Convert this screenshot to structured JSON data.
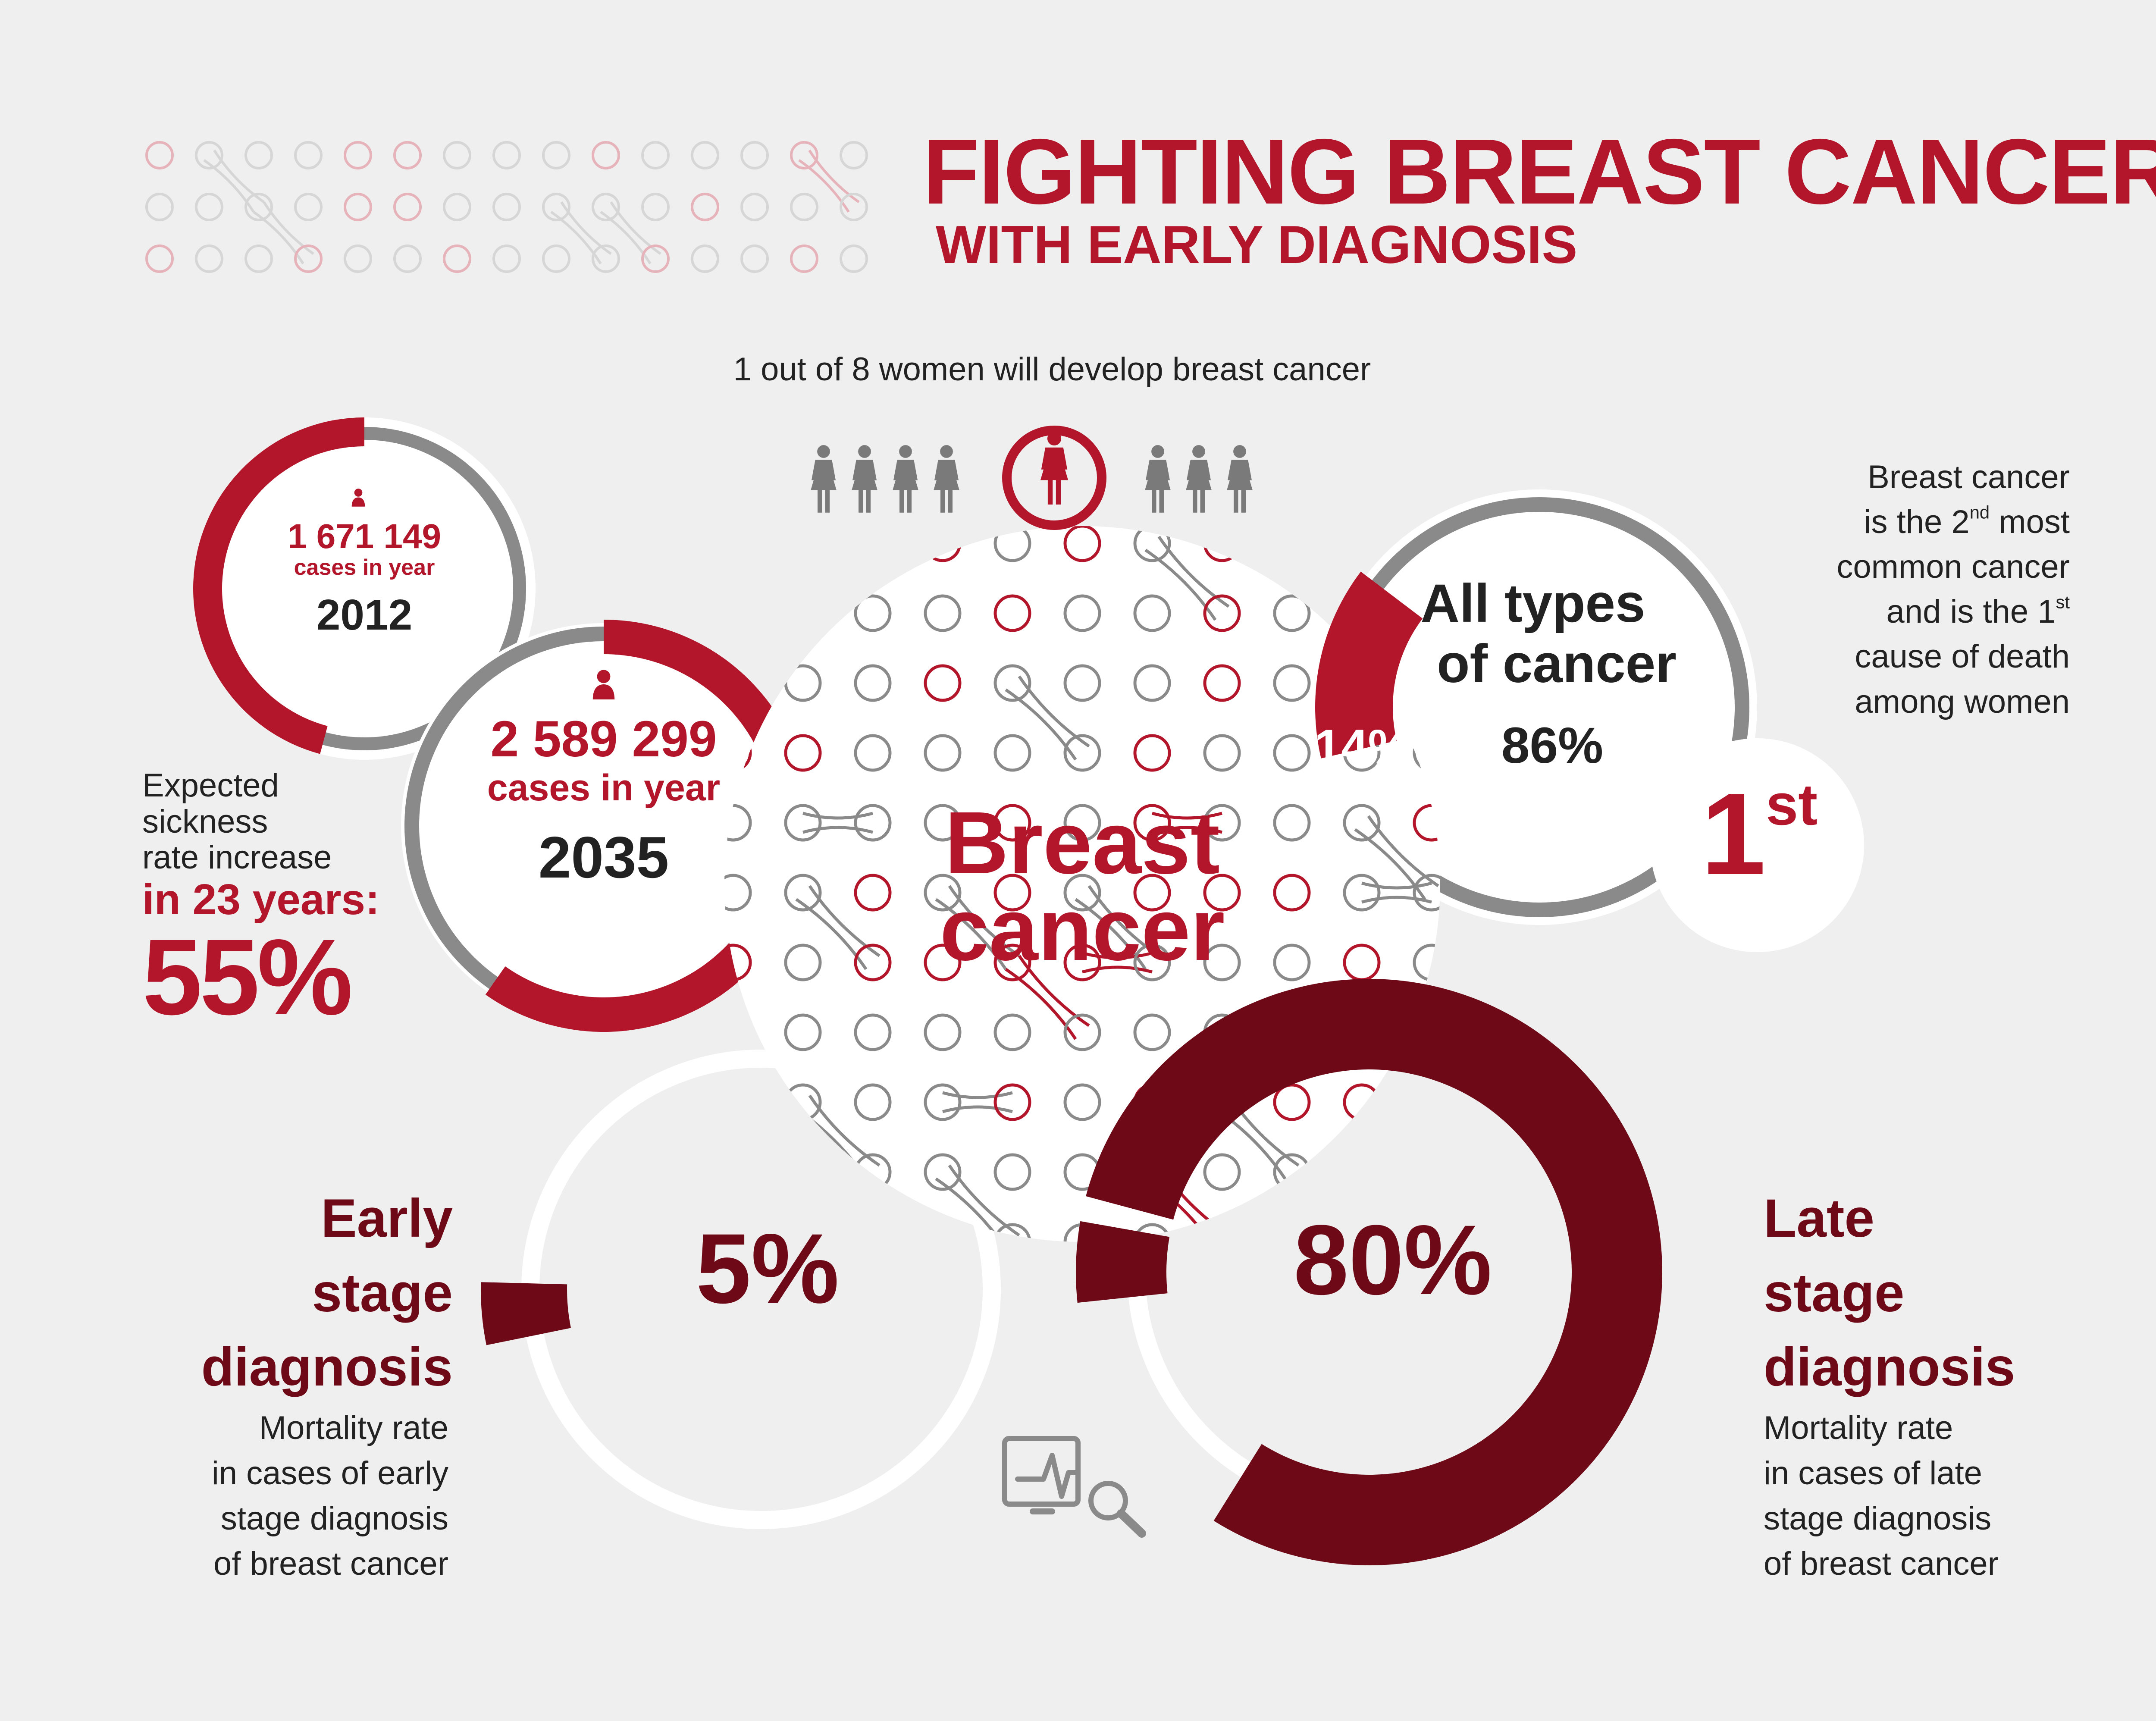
{
  "title": {
    "line1": "FIGHTING BREAST CANCER",
    "line2": "WITH EARLY DIAGNOSIS"
  },
  "women_stat": {
    "text": "1 out of 8 women will develop breast cancer",
    "total": 8,
    "highlighted_index": 4
  },
  "cases_2012": {
    "count": "1 671 149",
    "label": "cases in year",
    "year": "2012"
  },
  "cases_2035": {
    "count": "2 589 299",
    "label": "cases in year",
    "year": "2035"
  },
  "increase": {
    "line1": "Expected",
    "line2": "sickness",
    "line3": "rate increase",
    "line4": "in 23 years:",
    "value": "55%"
  },
  "center": {
    "line1": "Breast",
    "line2": "cancer"
  },
  "types": {
    "title_line1": "All types",
    "title_line2": "of cancer",
    "others": "86%",
    "breast": "14%",
    "breast_fraction": 0.14
  },
  "rank": {
    "line1": "Breast cancer",
    "line2_pre": "is the 2",
    "line2_sup": "nd",
    "line2_post": " most",
    "line3": "common cancer",
    "line4_pre": "and is the 1",
    "line4_sup": "st",
    "line5": "cause of death",
    "line6": "among women",
    "badge": "1",
    "badge_sup": "st"
  },
  "early": {
    "title_line1": "Early",
    "title_line2": "stage",
    "title_line3": "diagnosis",
    "desc_line1": "Mortality rate",
    "desc_line2": "in cases of early",
    "desc_line3": "stage diagnosis",
    "desc_line4": "of breast cancer",
    "value": "5%",
    "fraction": 0.05
  },
  "late": {
    "title_line1": "Late",
    "title_line2": "stage",
    "title_line3": "diagnosis",
    "desc_line1": "Mortality rate",
    "desc_line2": "in cases of late",
    "desc_line3": "stage diagnosis",
    "desc_line4": "of breast cancer",
    "value": "80%",
    "fraction": 0.8
  },
  "icons": {
    "woman": "woman-icon",
    "person": "person-icon",
    "monitor": "monitor-magnifier-icon"
  },
  "colors": {
    "red": "#b3152a",
    "dark_red": "#6e0a17",
    "gray": "#8a8a8a",
    "background": "#efefef"
  }
}
